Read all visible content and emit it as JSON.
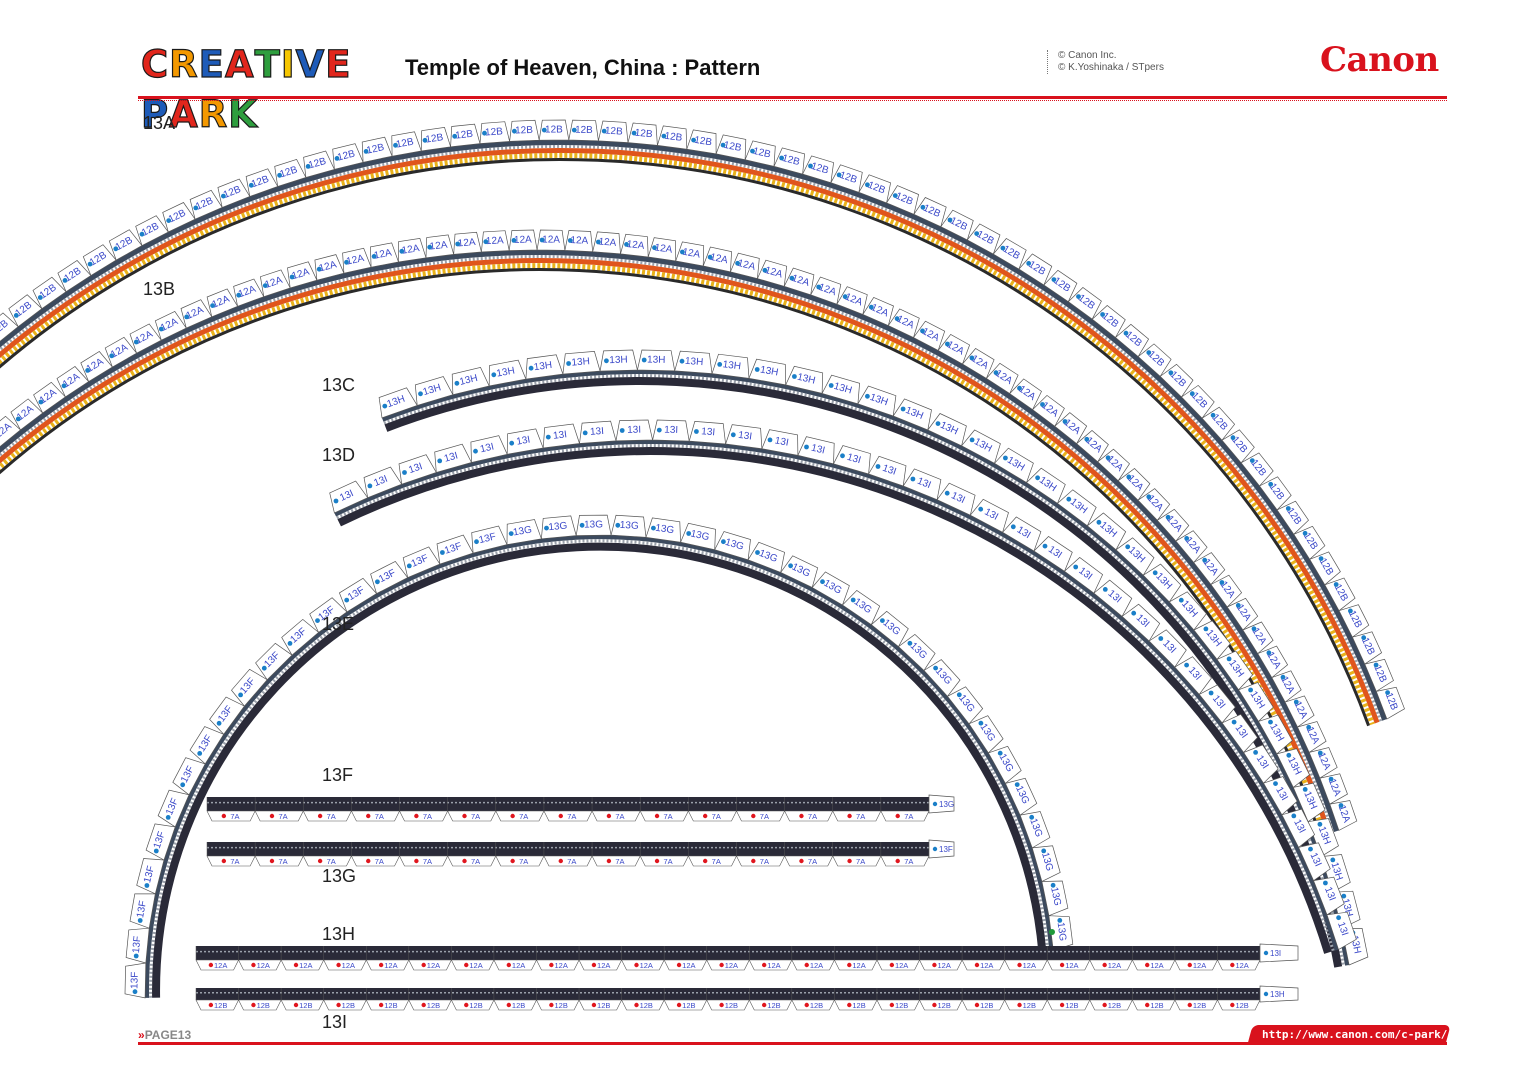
{
  "header": {
    "brand": [
      "C",
      "R",
      "E",
      "A",
      "T",
      "I",
      "V",
      "E",
      " ",
      "P",
      "A",
      "R",
      "K"
    ],
    "brand_colors": [
      "#e1261c",
      "#f39800",
      "#1e5bb8",
      "#e1261c",
      "#2e9e3e",
      "#f6c600",
      "#1e5bb8",
      "#e1261c",
      "#ffffff",
      "#1e5bb8",
      "#e1261c",
      "#f39800",
      "#2e9e3e"
    ],
    "title": "Temple of Heaven, China : Pattern",
    "copyright_line1": "© Canon Inc.",
    "copyright_line2": "© K.Yoshinaka  / STpers",
    "canon_logo": "Canon"
  },
  "footer": {
    "page_label": "PAGE13",
    "url": "http://www.canon.com/c-park/"
  },
  "pieces": {
    "13A": {
      "label": "13A",
      "tab_label": "12B",
      "end_label": "13A"
    },
    "13B": {
      "label": "13B",
      "tab_label": "12A",
      "end_label": "13B"
    },
    "13C": {
      "label": "13C",
      "tab_label": "13H",
      "end_label": "13C"
    },
    "13D": {
      "label": "13D",
      "tab_label": "13I",
      "end_label": "13D"
    },
    "13E": {
      "label": "13E",
      "tab_label_left": "13F",
      "tab_label_right": "13G"
    },
    "13F": {
      "label": "13F",
      "tab_label": "7A",
      "end_label": "13G"
    },
    "13G": {
      "label": "13G",
      "tab_label": "7A",
      "end_label": "13F"
    },
    "13H": {
      "label": "13H",
      "tab_label": "12A",
      "end_label": "13I"
    },
    "13I": {
      "label": "13I",
      "tab_label": "12B",
      "end_label": "13H"
    }
  },
  "colors": {
    "accent_red": "#d9121d",
    "dot_blue": "#1a7fc8",
    "dot_red": "#e0161e",
    "dot_green": "#1f9a3a",
    "tab_text": "#3b49c9",
    "band_dark": "#2a2a38",
    "band_orange": "#e0551c",
    "band_yellow": "#e9b21a"
  }
}
